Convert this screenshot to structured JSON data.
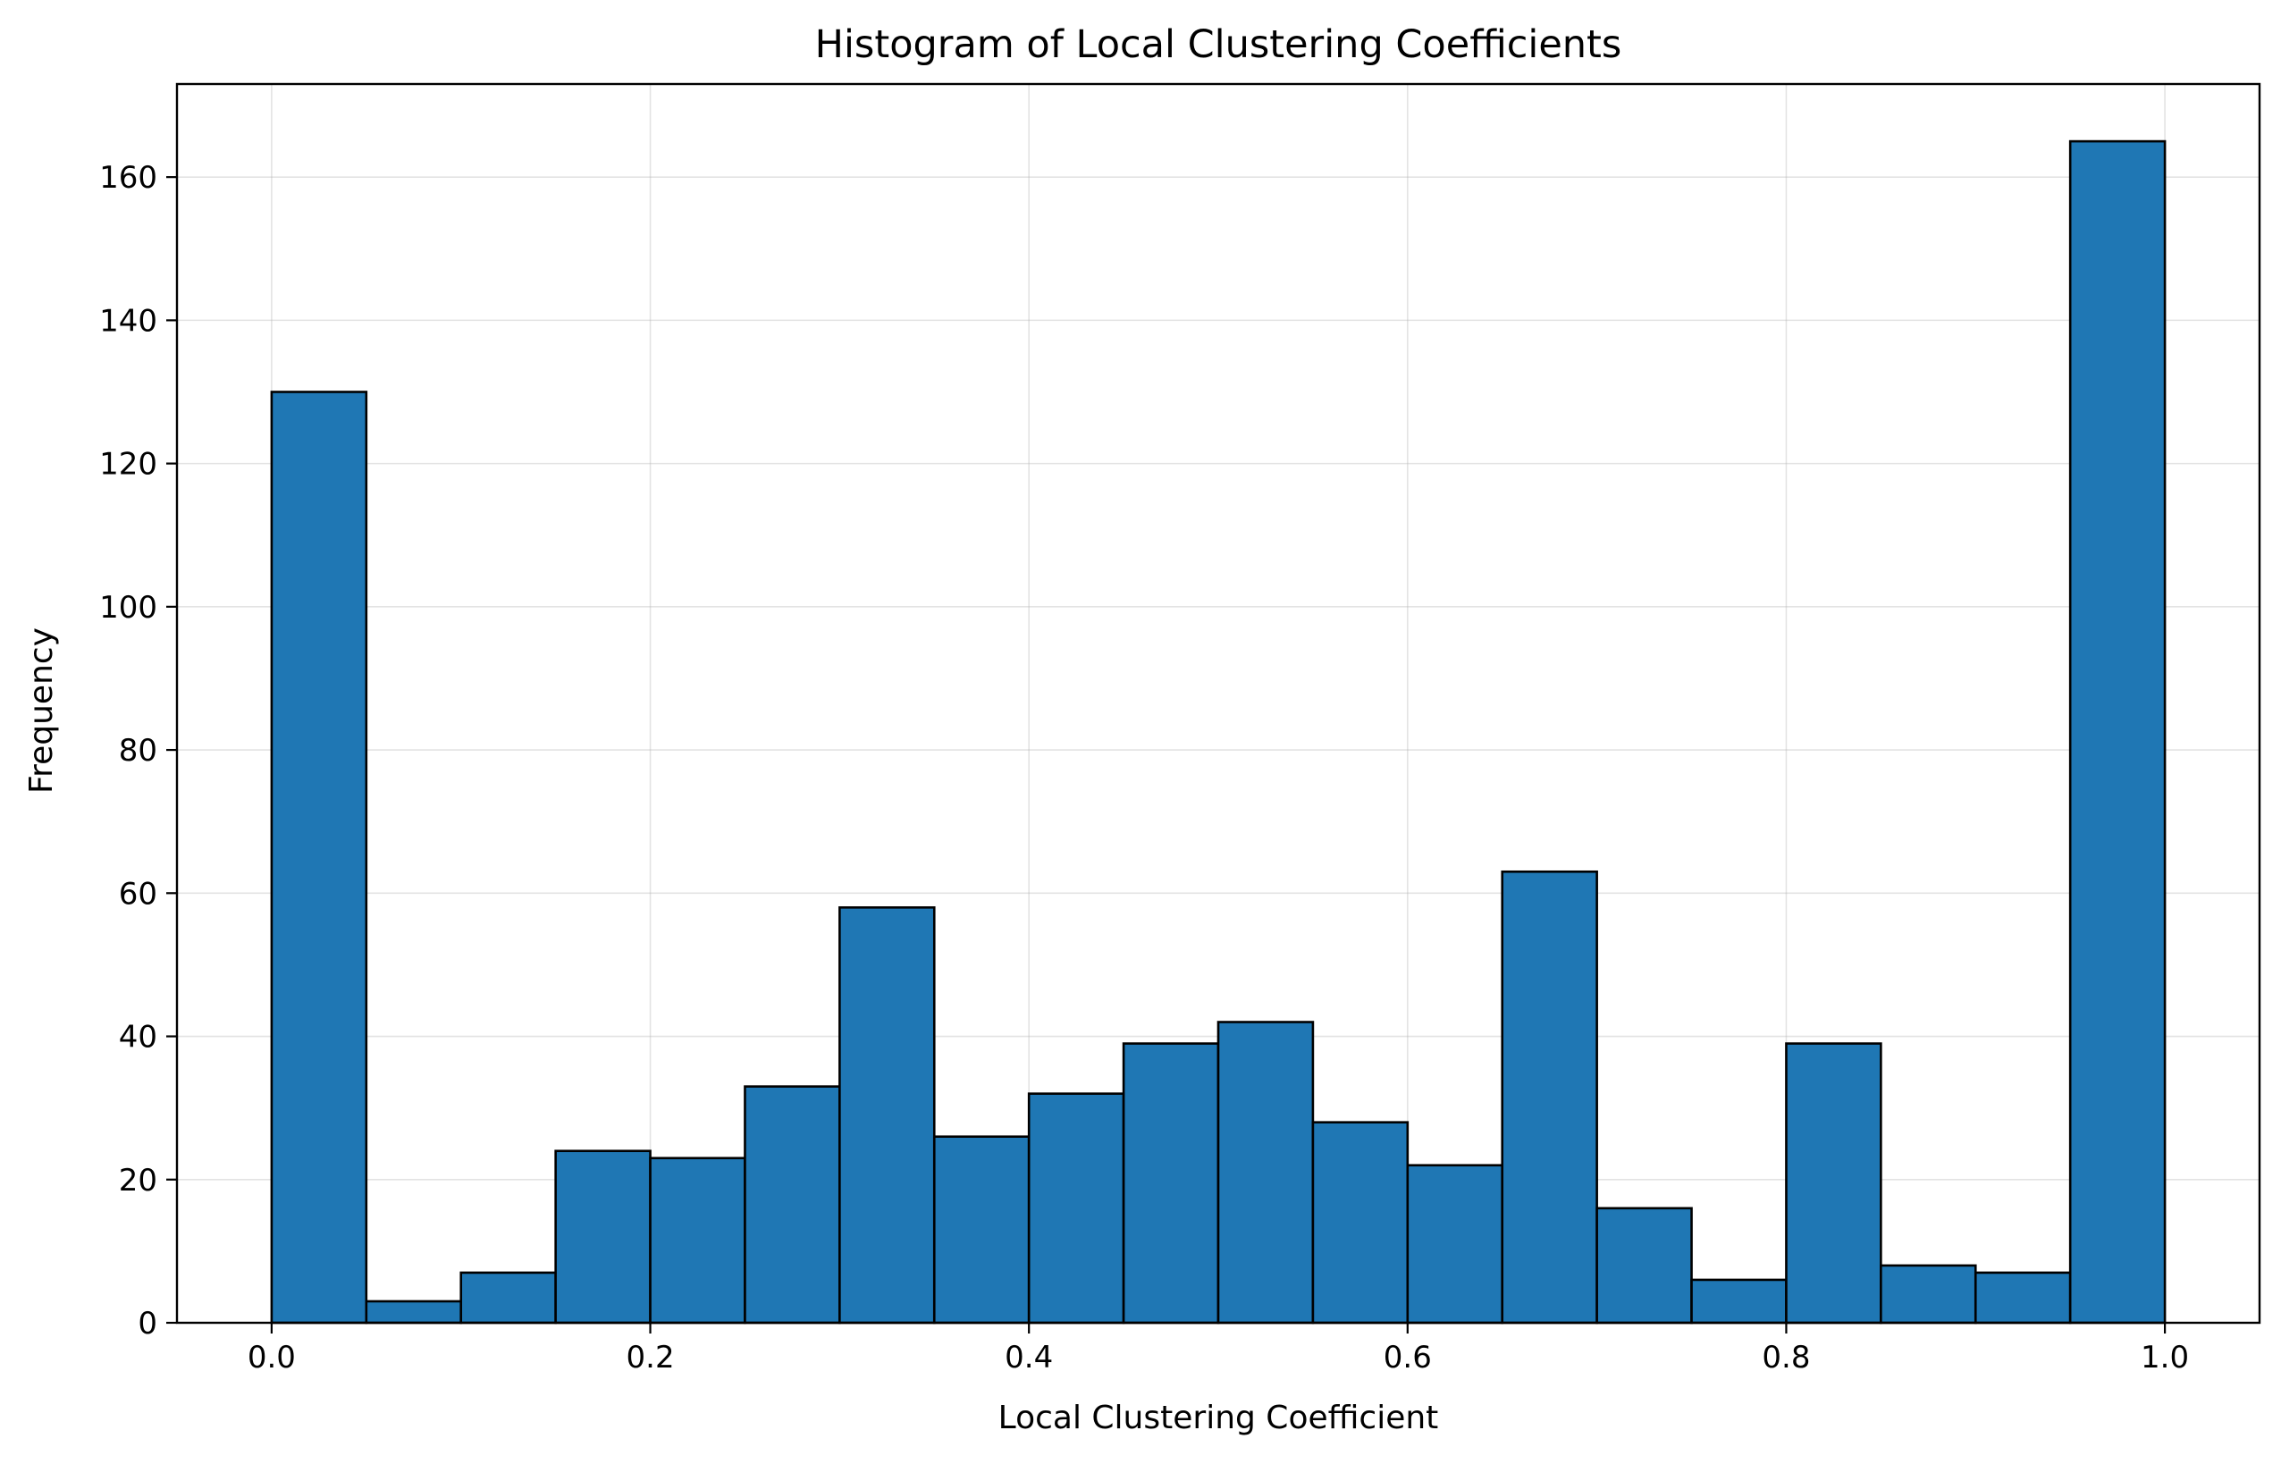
{
  "chart_data": {
    "type": "histogram",
    "title": "Histogram of Local Clustering Coefficients",
    "xlabel": "Local Clustering Coefficient",
    "ylabel": "Frequency",
    "xlim": [
      -0.05,
      1.05
    ],
    "ylim": [
      0,
      173
    ],
    "xticks": [
      0.0,
      0.2,
      0.4,
      0.6,
      0.8,
      1.0
    ],
    "xtick_labels": [
      "0.0",
      "0.2",
      "0.4",
      "0.6",
      "0.8",
      "1.0"
    ],
    "yticks": [
      0,
      20,
      40,
      60,
      80,
      100,
      120,
      140,
      160
    ],
    "ytick_labels": [
      "0",
      "20",
      "40",
      "60",
      "80",
      "100",
      "120",
      "140",
      "160"
    ],
    "grid": true,
    "bar_color": "#1f77b4",
    "edge_color": "#000000",
    "bins": [
      {
        "start": 0.0,
        "end": 0.05,
        "count": 130
      },
      {
        "start": 0.05,
        "end": 0.1,
        "count": 3
      },
      {
        "start": 0.1,
        "end": 0.15,
        "count": 7
      },
      {
        "start": 0.15,
        "end": 0.2,
        "count": 24
      },
      {
        "start": 0.2,
        "end": 0.25,
        "count": 23
      },
      {
        "start": 0.25,
        "end": 0.3,
        "count": 33
      },
      {
        "start": 0.3,
        "end": 0.35,
        "count": 58
      },
      {
        "start": 0.35,
        "end": 0.4,
        "count": 26
      },
      {
        "start": 0.4,
        "end": 0.45,
        "count": 32
      },
      {
        "start": 0.45,
        "end": 0.5,
        "count": 39
      },
      {
        "start": 0.5,
        "end": 0.55,
        "count": 42
      },
      {
        "start": 0.55,
        "end": 0.6,
        "count": 28
      },
      {
        "start": 0.6,
        "end": 0.65,
        "count": 22
      },
      {
        "start": 0.65,
        "end": 0.7,
        "count": 63
      },
      {
        "start": 0.7,
        "end": 0.75,
        "count": 16
      },
      {
        "start": 0.75,
        "end": 0.8,
        "count": 6
      },
      {
        "start": 0.8,
        "end": 0.85,
        "count": 39
      },
      {
        "start": 0.85,
        "end": 0.9,
        "count": 8
      },
      {
        "start": 0.9,
        "end": 0.95,
        "count": 7
      },
      {
        "start": 0.95,
        "end": 1.0,
        "count": 165
      }
    ]
  }
}
